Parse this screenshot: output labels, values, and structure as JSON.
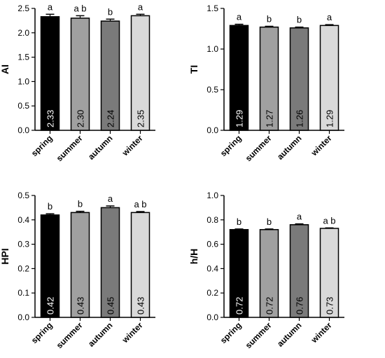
{
  "colors": [
    "#000000",
    "#a0a0a0",
    "#7a7a7a",
    "#d9d9d9"
  ],
  "chart_data": [
    {
      "type": "bar",
      "ylabel": "AI",
      "ylim": [
        0,
        2.5
      ],
      "yticks": [
        "0.0",
        "0.5",
        "1.0",
        "1.5",
        "2.0",
        "2.5"
      ],
      "categories": [
        "spring",
        "summer",
        "autumn",
        "winter"
      ],
      "values": [
        2.33,
        2.3,
        2.24,
        2.35
      ],
      "errors": [
        0.05,
        0.05,
        0.04,
        0.03
      ],
      "value_labels": [
        "2.33",
        "2.30",
        "2.24",
        "2.35"
      ],
      "significance": [
        "a",
        "a b",
        "b",
        "a"
      ]
    },
    {
      "type": "bar",
      "ylabel": "TI",
      "ylim": [
        0,
        1.5
      ],
      "yticks": [
        "0.0",
        "0.5",
        "1.0",
        "1.5"
      ],
      "categories": [
        "spring",
        "summer",
        "autumn",
        "winter"
      ],
      "values": [
        1.29,
        1.27,
        1.26,
        1.29
      ],
      "errors": [
        0.015,
        0.01,
        0.01,
        0.01
      ],
      "value_labels": [
        "1.29",
        "1.27",
        "1.26",
        "1.29"
      ],
      "significance": [
        "a",
        "b",
        "b",
        "a"
      ]
    },
    {
      "type": "bar",
      "ylabel": "HPI",
      "ylim": [
        0,
        0.5
      ],
      "yticks": [
        "0.0",
        "0.1",
        "0.2",
        "0.3",
        "0.4",
        "0.5"
      ],
      "categories": [
        "spring",
        "summer",
        "autumn",
        "winter"
      ],
      "values": [
        0.42,
        0.43,
        0.45,
        0.43
      ],
      "errors": [
        0.005,
        0.005,
        0.007,
        0.004
      ],
      "value_labels": [
        "0.42",
        "0.43",
        "0.45",
        "0.43"
      ],
      "significance": [
        "b",
        "b",
        "a",
        "a b"
      ]
    },
    {
      "type": "bar",
      "ylabel": "h/H",
      "ylim": [
        0,
        1.0
      ],
      "yticks": [
        "0.0",
        "0.2",
        "0.4",
        "0.6",
        "0.8",
        "1.0"
      ],
      "categories": [
        "spring",
        "summer",
        "autumn",
        "winter"
      ],
      "values": [
        0.72,
        0.72,
        0.76,
        0.73
      ],
      "errors": [
        0.005,
        0.005,
        0.007,
        0.004
      ],
      "value_labels": [
        "0.72",
        "0.72",
        "0.76",
        "0.73"
      ],
      "significance": [
        "b",
        "b",
        "a",
        "a b"
      ]
    }
  ]
}
